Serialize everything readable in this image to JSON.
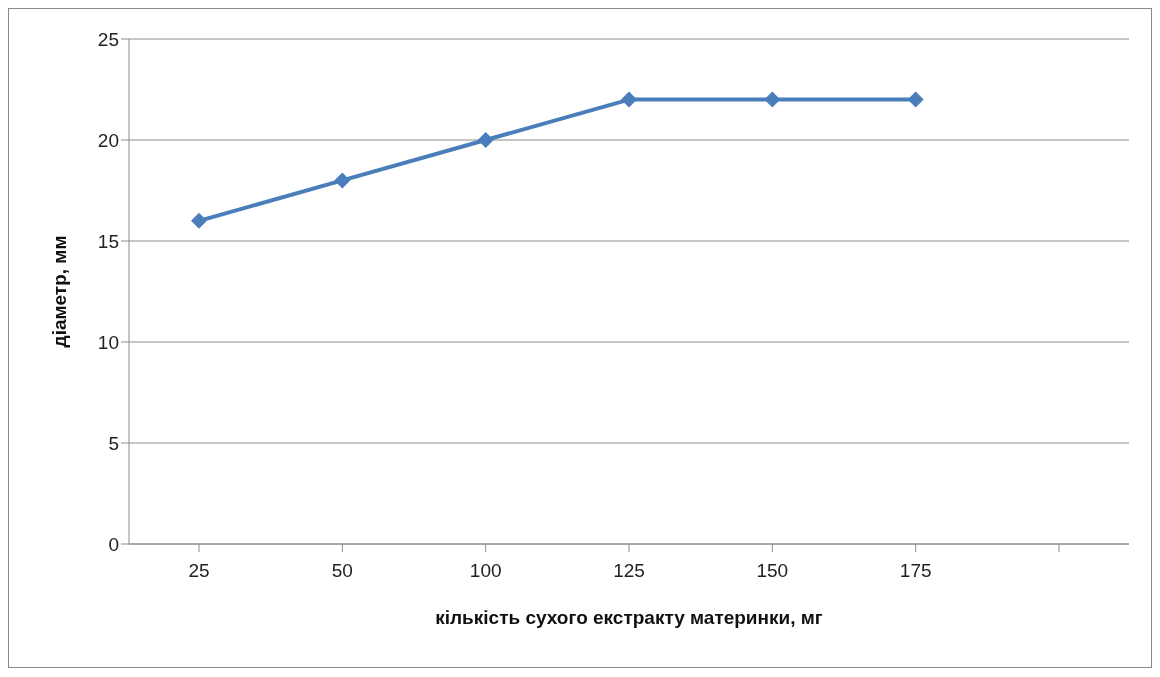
{
  "chart_data": {
    "type": "line",
    "xlabel": "кількість сухого екстракту материнки, мг",
    "ylabel": "діаметр, мм",
    "categories": [
      "25",
      "50",
      "100",
      "125",
      "150",
      "175",
      null
    ],
    "series": [
      {
        "color": "#4a7ebb",
        "values": [
          16,
          18,
          20,
          22,
          22,
          22,
          null
        ]
      }
    ],
    "ylim": [
      0,
      25
    ],
    "yticks": [
      0,
      5,
      10,
      15,
      20,
      25
    ],
    "grid": "y",
    "legend": false,
    "marker": "diamond",
    "line_style": "solid"
  }
}
